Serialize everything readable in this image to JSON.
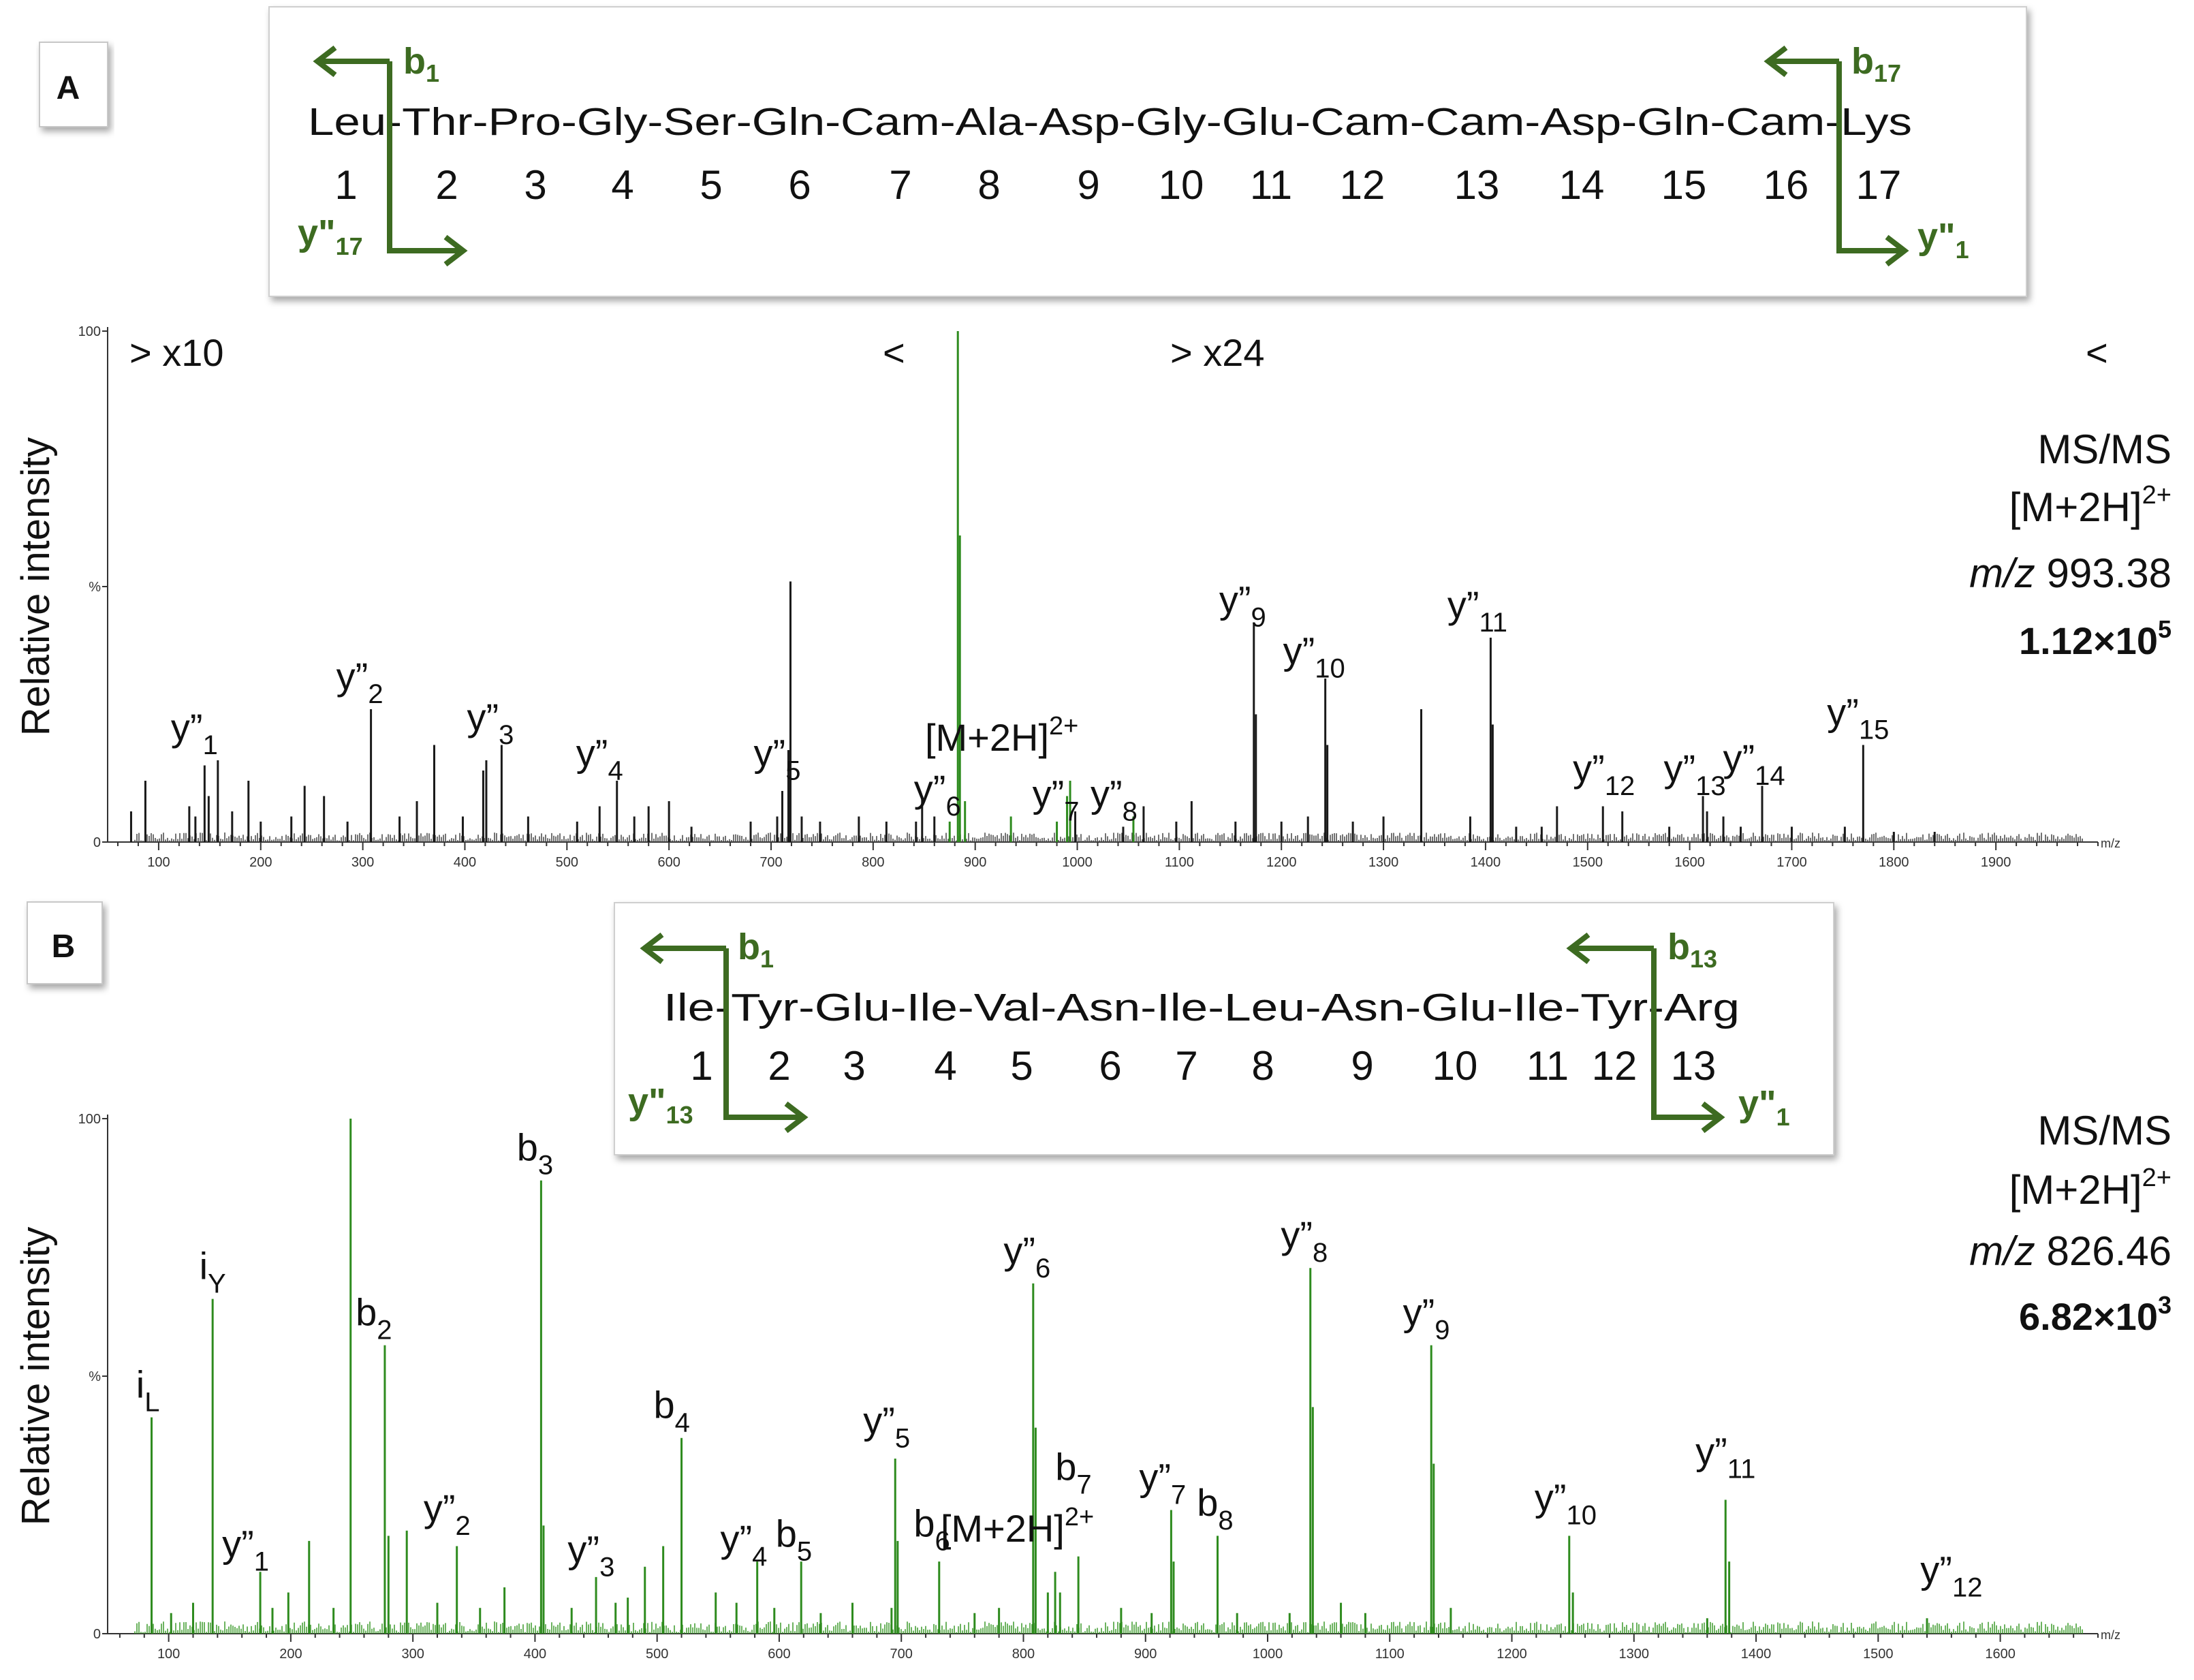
{
  "figure": {
    "panel_a": {
      "letter": "A",
      "sequence": "Leu-Thr-Pro-Gly-Ser-Gln-Cam-Ala-Asp-Gly-Glu-Cam-Cam-Asp-Gln-Cam-Lys",
      "positions": [
        "1",
        "2",
        "3",
        "4",
        "5",
        "6",
        "7",
        "8",
        "9",
        "10",
        "11",
        "12",
        "13",
        "14",
        "15",
        "16",
        "17"
      ],
      "frag_labels": {
        "left_b": {
          "base": "b",
          "sub": "1"
        },
        "left_y": {
          "base": "y\"",
          "sub": "17"
        },
        "right_b": {
          "base": "b",
          "sub": "17"
        },
        "right_y": {
          "base": "y\"",
          "sub": "1"
        }
      },
      "magnification": {
        "left": "> x10",
        "left_end": "<",
        "right": "> x24",
        "right_end": "<"
      },
      "info": {
        "mode": "MS/MS",
        "ion_base": "[M+2H]",
        "ion_sup": "2+",
        "mz_italic": "m/z",
        "mz_value": " 993.38",
        "intensity_base": "1.12×10",
        "intensity_sup": "5"
      }
    },
    "panel_b": {
      "letter": "B",
      "sequence": "Ile-Tyr-Glu-Ile-Val-Asn-Ile-Leu-Asn-Glu-Ile-Tyr-Arg",
      "positions": [
        "1",
        "2",
        "3",
        "4",
        "5",
        "6",
        "7",
        "8",
        "9",
        "10",
        "11",
        "12",
        "13"
      ],
      "frag_labels": {
        "left_b": {
          "base": "b",
          "sub": "1"
        },
        "left_y": {
          "base": "y\"",
          "sub": "13"
        },
        "right_b": {
          "base": "b",
          "sub": "13"
        },
        "right_y": {
          "base": "y\"",
          "sub": "1"
        }
      },
      "info": {
        "mode": "MS/MS",
        "ion_base": "[M+2H]",
        "ion_sup": "2+",
        "mz_italic": "m/z",
        "mz_value": " 826.46",
        "intensity_base": "6.82×10",
        "intensity_sup": "3"
      }
    }
  },
  "chart_data": [
    {
      "type": "bar",
      "panel": "A",
      "ylabel": "Relative intensity",
      "xlabel": "m/z",
      "xlim": [
        50,
        2000
      ],
      "ylim": [
        0,
        100
      ],
      "x_ticks": [
        100,
        200,
        300,
        400,
        500,
        600,
        700,
        800,
        900,
        1000,
        1100,
        1200,
        1300,
        1400,
        1500,
        1600,
        1700,
        1800,
        1900
      ],
      "y_ticks": [
        {
          "value": 100,
          "label": "100"
        },
        {
          "value": 50,
          "label": "%"
        },
        {
          "value": 0,
          "label": "0"
        }
      ],
      "colors": {
        "default": "#1a1a1a",
        "highlight": "#2e8b1e"
      },
      "peaks": [
        {
          "mz": 73,
          "i": 6
        },
        {
          "mz": 87,
          "i": 12
        },
        {
          "mz": 130,
          "i": 7
        },
        {
          "mz": 136,
          "i": 5
        },
        {
          "mz": 145,
          "i": 15
        },
        {
          "mz": 149,
          "i": 9
        },
        {
          "mz": 158,
          "i": 16
        },
        {
          "mz": 172,
          "i": 6
        },
        {
          "mz": 188,
          "i": 12
        },
        {
          "mz": 200,
          "i": 4
        },
        {
          "mz": 230,
          "i": 5
        },
        {
          "mz": 243,
          "i": 11
        },
        {
          "mz": 262,
          "i": 9
        },
        {
          "mz": 285,
          "i": 4
        },
        {
          "mz": 308,
          "i": 26
        },
        {
          "mz": 336,
          "i": 5
        },
        {
          "mz": 353,
          "i": 8
        },
        {
          "mz": 370,
          "i": 19
        },
        {
          "mz": 398,
          "i": 5
        },
        {
          "mz": 418,
          "i": 14
        },
        {
          "mz": 421,
          "i": 16
        },
        {
          "mz": 436,
          "i": 19
        },
        {
          "mz": 462,
          "i": 5
        },
        {
          "mz": 510,
          "i": 4
        },
        {
          "mz": 532,
          "i": 7
        },
        {
          "mz": 549,
          "i": 12
        },
        {
          "mz": 566,
          "i": 5
        },
        {
          "mz": 580,
          "i": 7
        },
        {
          "mz": 600,
          "i": 8
        },
        {
          "mz": 622,
          "i": 3
        },
        {
          "mz": 680,
          "i": 4
        },
        {
          "mz": 706,
          "i": 5
        },
        {
          "mz": 711,
          "i": 10
        },
        {
          "mz": 717,
          "i": 18
        },
        {
          "mz": 719,
          "i": 51
        },
        {
          "mz": 730,
          "i": 5
        },
        {
          "mz": 748,
          "i": 4
        },
        {
          "mz": 786,
          "i": 5
        },
        {
          "mz": 813,
          "i": 4
        },
        {
          "mz": 842,
          "i": 4
        },
        {
          "mz": 848,
          "i": 9
        },
        {
          "mz": 860,
          "i": 5
        },
        {
          "mz": 875,
          "i": 4,
          "g": true
        },
        {
          "mz": 883,
          "i": 100,
          "g": true
        },
        {
          "mz": 885,
          "i": 60,
          "g": true
        },
        {
          "mz": 890,
          "i": 8,
          "g": true
        },
        {
          "mz": 935,
          "i": 5,
          "g": true
        },
        {
          "mz": 980,
          "i": 4,
          "g": true
        },
        {
          "mz": 990,
          "i": 9,
          "g": true
        },
        {
          "mz": 993,
          "i": 12,
          "g": true
        },
        {
          "mz": 998,
          "i": 6
        },
        {
          "mz": 1045,
          "i": 3
        },
        {
          "mz": 1055,
          "i": 5,
          "g": true
        },
        {
          "mz": 1065,
          "i": 7
        },
        {
          "mz": 1097,
          "i": 4
        },
        {
          "mz": 1112,
          "i": 8
        },
        {
          "mz": 1155,
          "i": 4
        },
        {
          "mz": 1173,
          "i": 43
        },
        {
          "mz": 1175,
          "i": 25
        },
        {
          "mz": 1200,
          "i": 4
        },
        {
          "mz": 1226,
          "i": 5
        },
        {
          "mz": 1243,
          "i": 32
        },
        {
          "mz": 1245,
          "i": 19
        },
        {
          "mz": 1270,
          "i": 4
        },
        {
          "mz": 1300,
          "i": 5
        },
        {
          "mz": 1337,
          "i": 26
        },
        {
          "mz": 1385,
          "i": 5
        },
        {
          "mz": 1405,
          "i": 40
        },
        {
          "mz": 1407,
          "i": 23
        },
        {
          "mz": 1430,
          "i": 3
        },
        {
          "mz": 1455,
          "i": 3
        },
        {
          "mz": 1470,
          "i": 7
        },
        {
          "mz": 1515,
          "i": 7
        },
        {
          "mz": 1534,
          "i": 6
        },
        {
          "mz": 1580,
          "i": 3
        },
        {
          "mz": 1613,
          "i": 9
        },
        {
          "mz": 1617,
          "i": 6
        },
        {
          "mz": 1633,
          "i": 5
        },
        {
          "mz": 1650,
          "i": 3
        },
        {
          "mz": 1671,
          "i": 11
        },
        {
          "mz": 1700,
          "i": 3
        },
        {
          "mz": 1752,
          "i": 3
        },
        {
          "mz": 1770,
          "i": 19
        },
        {
          "mz": 1800,
          "i": 2
        },
        {
          "mz": 1840,
          "i": 2
        }
      ],
      "annotations": [
        {
          "base": "y”",
          "sub": "1",
          "mz": 135,
          "i": 18
        },
        {
          "base": "y”",
          "sub": "2",
          "mz": 297,
          "i": 28
        },
        {
          "base": "y”",
          "sub": "3",
          "mz": 425,
          "i": 20
        },
        {
          "base": "y”",
          "sub": "4",
          "mz": 532,
          "i": 13
        },
        {
          "base": "y”",
          "sub": "5",
          "mz": 706,
          "i": 13
        },
        {
          "base": "y”",
          "sub": "6",
          "mz": 863,
          "i": 6
        },
        {
          "base": "[M+2H]",
          "sup": "2+",
          "mz": 926,
          "i": 16
        },
        {
          "base": "y”",
          "sub": "7",
          "mz": 979,
          "i": 5
        },
        {
          "base": "y”",
          "sub": "8",
          "mz": 1036,
          "i": 5
        },
        {
          "base": "y”",
          "sub": "9",
          "mz": 1162,
          "i": 43
        },
        {
          "base": "y”",
          "sub": "10",
          "mz": 1232,
          "i": 33
        },
        {
          "base": "y”",
          "sub": "11",
          "mz": 1392,
          "i": 42
        },
        {
          "base": "y”",
          "sub": "12",
          "mz": 1516,
          "i": 10
        },
        {
          "base": "y”",
          "sub": "13",
          "mz": 1605,
          "i": 10
        },
        {
          "base": "y”",
          "sub": "14",
          "mz": 1663,
          "i": 12
        },
        {
          "base": "y”",
          "sub": "15",
          "mz": 1765,
          "i": 21
        }
      ]
    },
    {
      "type": "bar",
      "panel": "B",
      "ylabel": "Relative intensity",
      "xlabel": "m/z",
      "xlim": [
        50,
        1680
      ],
      "ylim": [
        0,
        100
      ],
      "x_ticks": [
        100,
        200,
        300,
        400,
        500,
        600,
        700,
        800,
        900,
        1000,
        1100,
        1200,
        1300,
        1400,
        1500,
        1600
      ],
      "y_ticks": [
        {
          "value": 100,
          "label": "100"
        },
        {
          "value": 50,
          "label": "%"
        },
        {
          "value": 0,
          "label": "0"
        }
      ],
      "colors": {
        "default": "#2e8b1e"
      },
      "peaks": [
        {
          "mz": 86,
          "i": 42
        },
        {
          "mz": 102,
          "i": 4
        },
        {
          "mz": 120,
          "i": 6
        },
        {
          "mz": 136,
          "i": 65
        },
        {
          "mz": 175,
          "i": 12
        },
        {
          "mz": 185,
          "i": 5
        },
        {
          "mz": 198,
          "i": 8
        },
        {
          "mz": 215,
          "i": 18
        },
        {
          "mz": 235,
          "i": 5
        },
        {
          "mz": 249,
          "i": 100
        },
        {
          "mz": 277,
          "i": 56
        },
        {
          "mz": 280,
          "i": 19
        },
        {
          "mz": 295,
          "i": 20
        },
        {
          "mz": 320,
          "i": 6
        },
        {
          "mz": 336,
          "i": 17
        },
        {
          "mz": 355,
          "i": 5
        },
        {
          "mz": 375,
          "i": 9
        },
        {
          "mz": 405,
          "i": 88
        },
        {
          "mz": 407,
          "i": 21
        },
        {
          "mz": 430,
          "i": 5
        },
        {
          "mz": 450,
          "i": 11
        },
        {
          "mz": 466,
          "i": 6
        },
        {
          "mz": 476,
          "i": 7
        },
        {
          "mz": 490,
          "i": 13
        },
        {
          "mz": 505,
          "i": 17
        },
        {
          "mz": 520,
          "i": 38
        },
        {
          "mz": 548,
          "i": 8
        },
        {
          "mz": 565,
          "i": 6
        },
        {
          "mz": 582,
          "i": 14
        },
        {
          "mz": 596,
          "i": 5
        },
        {
          "mz": 618,
          "i": 14
        },
        {
          "mz": 634,
          "i": 4
        },
        {
          "mz": 660,
          "i": 6
        },
        {
          "mz": 692,
          "i": 5
        },
        {
          "mz": 695,
          "i": 34
        },
        {
          "mz": 697,
          "i": 18
        },
        {
          "mz": 731,
          "i": 14
        },
        {
          "mz": 760,
          "i": 4
        },
        {
          "mz": 780,
          "i": 5
        },
        {
          "mz": 808,
          "i": 68
        },
        {
          "mz": 810,
          "i": 40
        },
        {
          "mz": 820,
          "i": 8
        },
        {
          "mz": 826,
          "i": 12
        },
        {
          "mz": 830,
          "i": 8
        },
        {
          "mz": 845,
          "i": 15
        },
        {
          "mz": 880,
          "i": 5
        },
        {
          "mz": 905,
          "i": 4
        },
        {
          "mz": 921,
          "i": 24
        },
        {
          "mz": 923,
          "i": 14
        },
        {
          "mz": 959,
          "i": 19
        },
        {
          "mz": 975,
          "i": 4
        },
        {
          "mz": 1018,
          "i": 4
        },
        {
          "mz": 1035,
          "i": 71
        },
        {
          "mz": 1037,
          "i": 44
        },
        {
          "mz": 1060,
          "i": 6
        },
        {
          "mz": 1080,
          "i": 4
        },
        {
          "mz": 1134,
          "i": 56
        },
        {
          "mz": 1136,
          "i": 33
        },
        {
          "mz": 1150,
          "i": 5
        },
        {
          "mz": 1247,
          "i": 19
        },
        {
          "mz": 1250,
          "i": 8
        },
        {
          "mz": 1360,
          "i": 3
        },
        {
          "mz": 1375,
          "i": 26
        },
        {
          "mz": 1378,
          "i": 14
        },
        {
          "mz": 1540,
          "i": 3
        }
      ],
      "annotations": [
        {
          "base": "i",
          "sub": "L",
          "mz": 83,
          "i": 44
        },
        {
          "base": "i",
          "sub": "Y",
          "mz": 136,
          "i": 67
        },
        {
          "base": "y”",
          "sub": "1",
          "mz": 163,
          "i": 13
        },
        {
          "base": "b",
          "sub": "2",
          "mz": 268,
          "i": 58
        },
        {
          "base": "y”",
          "sub": "2",
          "mz": 328,
          "i": 20
        },
        {
          "base": "b",
          "sub": "3",
          "mz": 400,
          "i": 90
        },
        {
          "base": "y”",
          "sub": "3",
          "mz": 446,
          "i": 12
        },
        {
          "base": "b",
          "sub": "4",
          "mz": 512,
          "i": 40
        },
        {
          "base": "y”",
          "sub": "4",
          "mz": 571,
          "i": 14
        },
        {
          "base": "b",
          "sub": "5",
          "mz": 612,
          "i": 15
        },
        {
          "base": "y”",
          "sub": "5",
          "mz": 688,
          "i": 37
        },
        {
          "base": "b",
          "sub": "6",
          "mz": 725,
          "i": 17
        },
        {
          "base": "[M+2H]",
          "sup": "2+",
          "mz": 795,
          "i": 16
        },
        {
          "base": "y”",
          "sub": "6",
          "mz": 803,
          "i": 70
        },
        {
          "base": "b",
          "sub": "7",
          "mz": 841,
          "i": 28
        },
        {
          "base": "y”",
          "sub": "7",
          "mz": 914,
          "i": 26
        },
        {
          "base": "b",
          "sub": "8",
          "mz": 957,
          "i": 21
        },
        {
          "base": "y”",
          "sub": "8",
          "mz": 1030,
          "i": 73
        },
        {
          "base": "y”",
          "sub": "9",
          "mz": 1130,
          "i": 58
        },
        {
          "base": "y”",
          "sub": "10",
          "mz": 1244,
          "i": 22
        },
        {
          "base": "y”",
          "sub": "11",
          "mz": 1375,
          "i": 31
        },
        {
          "base": "y”",
          "sub": "12",
          "mz": 1560,
          "i": 8
        }
      ]
    }
  ]
}
